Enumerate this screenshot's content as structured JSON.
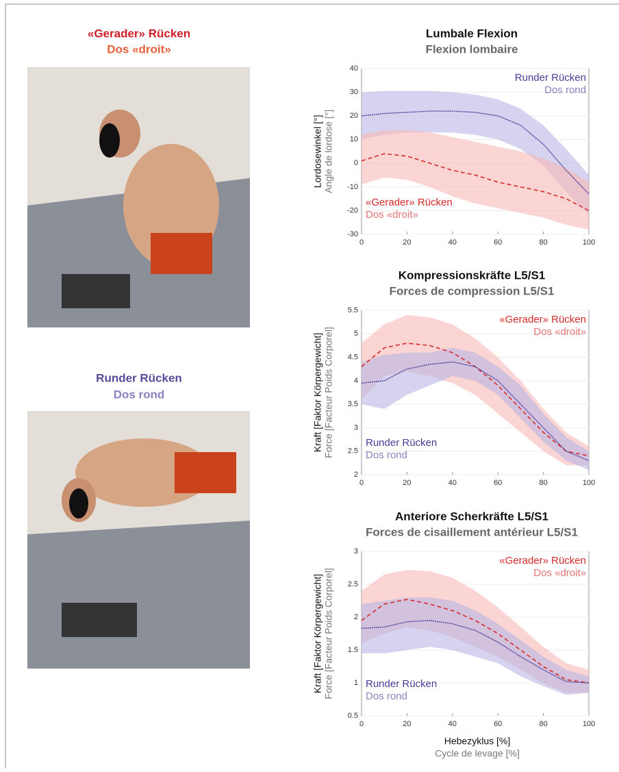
{
  "photos": [
    {
      "title": "«Gerader» Rücken",
      "subtitle": "Dos «droit»"
    },
    {
      "title": "Runder Rücken",
      "subtitle": "Dos rond"
    }
  ],
  "chart_data": [
    {
      "type": "line-band",
      "title": "Lumbale Flexion",
      "subtitle": "Flexion lombaire",
      "ylabel": "Lordosewinkel [°]",
      "ylabel2": "Angle de lordose [°]",
      "x": [
        0,
        10,
        20,
        30,
        40,
        50,
        60,
        70,
        80,
        90,
        100
      ],
      "xlim": [
        0,
        100
      ],
      "xticks": [
        0,
        20,
        40,
        60,
        80,
        100
      ],
      "ylim": [
        -30,
        40
      ],
      "yticks": [
        -30,
        -20,
        -10,
        0,
        10,
        20,
        30,
        40
      ],
      "grid": true,
      "series": [
        {
          "name": "Runder Rücken",
          "subname": "Dos rond",
          "color": "#4a3d9a",
          "band_color": "#b9b6e4",
          "dashed": false,
          "label_corner": "top-right",
          "values": [
            20,
            21,
            21.5,
            22,
            22,
            21.5,
            20,
            16,
            8,
            -3,
            -13
          ],
          "upper": [
            30,
            30.5,
            30.5,
            30.5,
            30,
            29,
            27,
            23,
            16,
            6,
            -5
          ],
          "lower": [
            10,
            12,
            13,
            13,
            13,
            12,
            10,
            6,
            -1,
            -12,
            -22
          ]
        },
        {
          "name": "«Gerader» Rücken",
          "subname": "Dos «droit»",
          "color": "#d62a2a",
          "band_color": "#f8b9b5",
          "dashed": true,
          "label_corner": "bottom-left",
          "values": [
            1,
            4,
            3,
            0,
            -3,
            -5,
            -8,
            -10,
            -12,
            -15,
            -20
          ],
          "upper": [
            12,
            14,
            14,
            13,
            11,
            9,
            7,
            5,
            2,
            -2,
            -8
          ],
          "lower": [
            -9,
            -6,
            -7,
            -10,
            -14,
            -17,
            -19,
            -21,
            -23,
            -26,
            -28
          ]
        }
      ]
    },
    {
      "type": "line-band",
      "title": "Kompressionskräfte L5/S1",
      "subtitle": "Forces de compression L5/S1",
      "ylabel": "Kraft [Faktor Körpergewicht]",
      "ylabel2": "Force [Facteur Poids Corporel]",
      "x": [
        0,
        10,
        20,
        30,
        40,
        50,
        60,
        70,
        80,
        90,
        100
      ],
      "xlim": [
        0,
        100
      ],
      "xticks": [
        0,
        20,
        40,
        60,
        80,
        100
      ],
      "ylim": [
        2,
        5.5
      ],
      "yticks": [
        2,
        2.5,
        3,
        3.5,
        4,
        4.5,
        5,
        5.5
      ],
      "grid": true,
      "series": [
        {
          "name": "«Gerader» Rücken",
          "subname": "Dos «droit»",
          "color": "#d62a2a",
          "band_color": "#f8b9b5",
          "dashed": true,
          "label_corner": "top-right",
          "values": [
            4.3,
            4.7,
            4.8,
            4.75,
            4.6,
            4.3,
            3.9,
            3.4,
            2.9,
            2.5,
            2.4
          ],
          "upper": [
            4.8,
            5.2,
            5.4,
            5.35,
            5.2,
            4.9,
            4.5,
            4,
            3.4,
            2.9,
            2.6
          ],
          "lower": [
            3.6,
            4.1,
            4.2,
            4.1,
            3.95,
            3.7,
            3.3,
            2.9,
            2.5,
            2.2,
            2.2
          ]
        },
        {
          "name": "Runder Rücken",
          "subname": "Dos rond",
          "color": "#4a3d9a",
          "band_color": "#b9b6e4",
          "dashed": false,
          "label_corner": "bottom-left",
          "values": [
            3.95,
            4,
            4.25,
            4.35,
            4.4,
            4.3,
            4,
            3.5,
            3,
            2.5,
            2.3
          ],
          "upper": [
            4.4,
            4.55,
            4.6,
            4.6,
            4.7,
            4.6,
            4.3,
            3.9,
            3.3,
            2.8,
            2.5
          ],
          "lower": [
            3.5,
            3.4,
            3.7,
            3.9,
            4.1,
            4,
            3.7,
            3.2,
            2.7,
            2.3,
            2.1
          ]
        }
      ]
    },
    {
      "type": "line-band",
      "title": "Anteriore Scherkräfte L5/S1",
      "subtitle": "Forces de cisaillement antérieur L5/S1",
      "ylabel": "Kraft [Faktor Körpergewicht]",
      "ylabel2": "Force [Facteur Poids Corporel]",
      "xlabel": "Hebezyklus [%]",
      "xlabel2": "Cycle de levage [%]",
      "x": [
        0,
        10,
        20,
        30,
        40,
        50,
        60,
        70,
        80,
        90,
        100
      ],
      "xlim": [
        0,
        100
      ],
      "xticks": [
        0,
        20,
        40,
        60,
        80,
        100
      ],
      "ylim": [
        0.5,
        3
      ],
      "yticks": [
        0.5,
        1,
        1.5,
        2,
        2.5,
        3
      ],
      "grid": true,
      "series": [
        {
          "name": "«Gerader» Rücken",
          "subname": "Dos «droit»",
          "color": "#d62a2a",
          "band_color": "#f8b9b5",
          "dashed": true,
          "label_corner": "top-right",
          "values": [
            1.95,
            2.2,
            2.27,
            2.2,
            2.1,
            1.95,
            1.75,
            1.5,
            1.25,
            1.05,
            1
          ],
          "upper": [
            2.4,
            2.65,
            2.72,
            2.7,
            2.6,
            2.4,
            2.15,
            1.85,
            1.55,
            1.3,
            1.2
          ],
          "lower": [
            1.6,
            1.75,
            1.85,
            1.8,
            1.7,
            1.55,
            1.4,
            1.2,
            1,
            0.85,
            0.85
          ]
        },
        {
          "name": "Runder Rücken",
          "subname": "Dos rond",
          "color": "#4a3d9a",
          "band_color": "#b9b6e4",
          "dashed": false,
          "label_corner": "bottom-left",
          "values": [
            1.83,
            1.85,
            1.93,
            1.95,
            1.9,
            1.8,
            1.62,
            1.4,
            1.2,
            1.02,
            1
          ],
          "upper": [
            2.2,
            2.25,
            2.3,
            2.3,
            2.25,
            2.1,
            1.9,
            1.65,
            1.4,
            1.2,
            1.1
          ],
          "lower": [
            1.45,
            1.45,
            1.5,
            1.55,
            1.5,
            1.4,
            1.3,
            1.1,
            0.95,
            0.82,
            0.85
          ]
        }
      ]
    }
  ]
}
